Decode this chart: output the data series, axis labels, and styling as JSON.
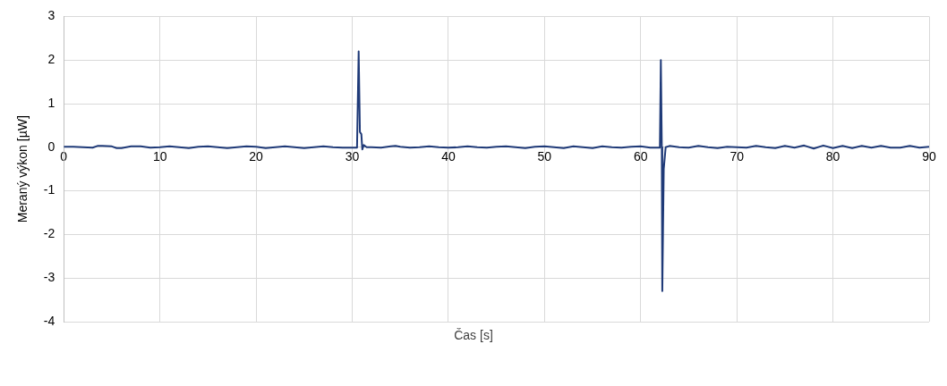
{
  "chart_data": {
    "type": "line",
    "xlabel": "Čas [s]",
    "ylabel": "Meraný výkon [µW]",
    "x": [
      0,
      1,
      2,
      3,
      3.5,
      4,
      5,
      5.5,
      6,
      7,
      8,
      9,
      10,
      11,
      12,
      13,
      14,
      15,
      16,
      17,
      18,
      19,
      20,
      21,
      22,
      23,
      24,
      25,
      26,
      27,
      28,
      29,
      30,
      30.5,
      30.67,
      30.8,
      30.95,
      31.05,
      31.2,
      31.5,
      32,
      33,
      34,
      34.5,
      35,
      36,
      37,
      38,
      39,
      40,
      41,
      42,
      43,
      44,
      45,
      46,
      47,
      48,
      49,
      50,
      51,
      52,
      53,
      54,
      55,
      56,
      57,
      58,
      59,
      60,
      61,
      62,
      62.1,
      62.2,
      62.25,
      62.4,
      62.6,
      63,
      64,
      65,
      66,
      67,
      68,
      69,
      70,
      71,
      72,
      73,
      74,
      75,
      76,
      77,
      78,
      79,
      80,
      81,
      82,
      83,
      84,
      85,
      86,
      87,
      88,
      89,
      90
    ],
    "series": [
      {
        "color": "#1f3a78",
        "values": [
          0.01,
          0.01,
          0,
          -0.01,
          0.03,
          0.03,
          0.02,
          -0.02,
          -0.02,
          0.02,
          0.02,
          -0.01,
          0,
          0.02,
          0,
          -0.02,
          0.01,
          0.02,
          0,
          -0.02,
          0,
          0.02,
          0.01,
          -0.02,
          0,
          0.02,
          0,
          -0.02,
          0,
          0.02,
          0,
          -0.01,
          -0.01,
          -0.01,
          2.2,
          0.35,
          0.3,
          -0.05,
          0.05,
          0,
          0,
          -0.01,
          0.02,
          0.03,
          0.01,
          -0.01,
          0,
          0.02,
          0,
          -0.01,
          0,
          0.02,
          0,
          -0.01,
          0.01,
          0.02,
          0,
          -0.02,
          0.01,
          0.02,
          0,
          -0.02,
          0.02,
          0,
          -0.02,
          0.02,
          0,
          -0.01,
          0.01,
          0.02,
          -0.01,
          -0.01,
          2.0,
          0,
          -3.3,
          -0.5,
          0,
          0.03,
          0,
          -0.01,
          0.03,
          0,
          -0.02,
          0.01,
          0,
          -0.01,
          0.03,
          0,
          -0.02,
          0.03,
          -0.01,
          0.04,
          -0.03,
          0.04,
          -0.02,
          0.03,
          -0.02,
          0.03,
          -0.01,
          0.03,
          -0.01,
          -0.01,
          0.03,
          -0.01,
          0.01
        ]
      }
    ],
    "xlim": [
      0,
      90
    ],
    "xticks": [
      0,
      10,
      20,
      30,
      40,
      50,
      60,
      70,
      80,
      90
    ],
    "ylim": [
      -4,
      3
    ],
    "yticks": [
      -4,
      -3,
      -2,
      -1,
      0,
      1,
      2,
      3
    ],
    "grid": true,
    "legend": false,
    "marker": "none",
    "line_style": "solid"
  }
}
